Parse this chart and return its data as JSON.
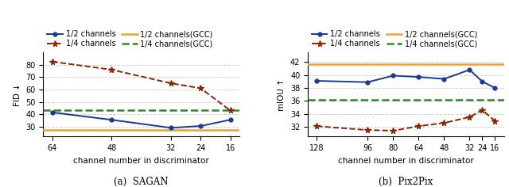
{
  "sagan": {
    "x": [
      64,
      48,
      32,
      24,
      16
    ],
    "half_channels": [
      41.5,
      35.5,
      29.0,
      30.5,
      35.5
    ],
    "quarter_channels": [
      82.5,
      76.0,
      65.0,
      61.0,
      43.0
    ],
    "gcc_half": 27.0,
    "gcc_quarter": 43.0,
    "xlabel": "channel number in discriminator",
    "ylabel": "FID ↓",
    "title": "(a)  SAGAN",
    "ylim": [
      22,
      90
    ],
    "yticks": [
      30,
      40,
      50,
      60,
      70,
      80
    ],
    "xticks": [
      64,
      48,
      32,
      24,
      16
    ]
  },
  "pix2pix": {
    "x": [
      128,
      96,
      80,
      64,
      48,
      32,
      24,
      16
    ],
    "half_channels": [
      39.1,
      38.9,
      39.9,
      39.7,
      39.4,
      40.8,
      39.0,
      38.0
    ],
    "quarter_channels": [
      32.1,
      31.5,
      31.4,
      32.1,
      32.6,
      33.5,
      34.6,
      32.9
    ],
    "gcc_half": 41.7,
    "gcc_quarter": 36.2,
    "xlabel": "channel number in discriminator",
    "ylabel": "mIOU ↑",
    "title": "(b)  Pix2Pix",
    "ylim": [
      30.5,
      43.5
    ],
    "yticks": [
      32,
      34,
      36,
      38,
      40,
      42
    ],
    "xticks": [
      128,
      96,
      80,
      64,
      48,
      32,
      24,
      16
    ]
  },
  "legend": {
    "half_label": "1/2 channels",
    "quarter_label": "1/4 channels",
    "gcc_half_label": "1/2 channels(GCC)",
    "gcc_quarter_label": "1/4 channels(GCC)"
  },
  "colors": {
    "blue": "#1a3a8f",
    "dark_orange": "#8b2500",
    "orange": "#f0a030",
    "green": "#2a8a2a"
  }
}
